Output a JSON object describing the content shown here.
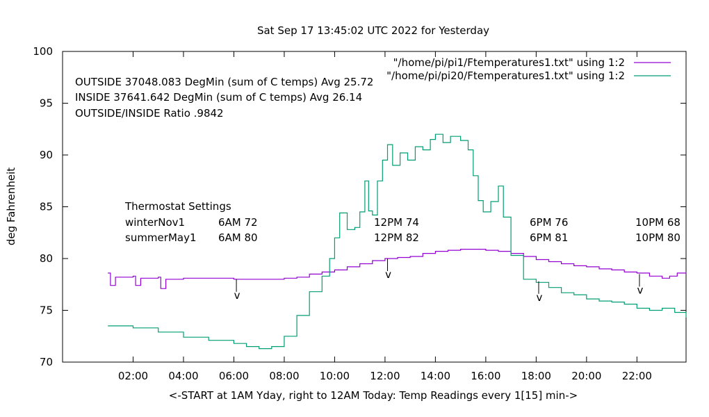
{
  "chart_data": {
    "type": "line",
    "title": "Sat Sep 17 13:45:02 UTC 2022 for Yesterday",
    "xlabel": "<-START at 1AM Yday, right to 12AM Today:  Temp Readings every 1[15] min->",
    "ylabel": "deg Fahrenheit",
    "xlim": [
      -0.8,
      23.95
    ],
    "ylim": [
      70,
      100
    ],
    "x_ticks": [
      2,
      4,
      6,
      8,
      10,
      12,
      14,
      16,
      18,
      20,
      22
    ],
    "x_tick_labels": [
      "02:00",
      "04:00",
      "06:00",
      "08:00",
      "10:00",
      "12:00",
      "14:00",
      "16:00",
      "18:00",
      "20:00",
      "22:00"
    ],
    "y_ticks": [
      70,
      75,
      80,
      85,
      90,
      95,
      100
    ],
    "y_tick_labels": [
      "70",
      "75",
      "80",
      "85",
      "90",
      "95",
      "100"
    ],
    "grid": false,
    "legend_position": "top-right",
    "series": [
      {
        "name": "\"/home/pi/pi1/Ftemperatures1.txt\" using 1:2",
        "color": "#9400d3",
        "points": [
          [
            1.0,
            78.6
          ],
          [
            1.1,
            77.4
          ],
          [
            1.3,
            78.2
          ],
          [
            2.0,
            78.3
          ],
          [
            2.1,
            77.4
          ],
          [
            2.3,
            78.1
          ],
          [
            3.0,
            78.2
          ],
          [
            3.1,
            77.1
          ],
          [
            3.3,
            78.0
          ],
          [
            4.0,
            78.1
          ],
          [
            5.0,
            78.1
          ],
          [
            6.0,
            78.0
          ],
          [
            7.0,
            78.0
          ],
          [
            8.0,
            78.1
          ],
          [
            8.5,
            78.2
          ],
          [
            9.0,
            78.5
          ],
          [
            9.5,
            78.7
          ],
          [
            10.0,
            78.9
          ],
          [
            10.5,
            79.2
          ],
          [
            11.0,
            79.5
          ],
          [
            11.5,
            79.8
          ],
          [
            12.0,
            80.0
          ],
          [
            12.5,
            80.1
          ],
          [
            13.0,
            80.2
          ],
          [
            13.5,
            80.5
          ],
          [
            14.0,
            80.7
          ],
          [
            14.5,
            80.8
          ],
          [
            15.0,
            80.9
          ],
          [
            15.5,
            80.9
          ],
          [
            16.0,
            80.8
          ],
          [
            16.5,
            80.7
          ],
          [
            17.0,
            80.5
          ],
          [
            17.5,
            80.2
          ],
          [
            18.0,
            79.9
          ],
          [
            18.5,
            79.7
          ],
          [
            19.0,
            79.5
          ],
          [
            19.5,
            79.3
          ],
          [
            20.0,
            79.2
          ],
          [
            20.5,
            79.0
          ],
          [
            21.0,
            78.9
          ],
          [
            21.5,
            78.7
          ],
          [
            22.0,
            78.6
          ],
          [
            22.5,
            78.3
          ],
          [
            23.0,
            78.1
          ],
          [
            23.3,
            78.3
          ],
          [
            23.6,
            78.6
          ],
          [
            23.95,
            78.7
          ]
        ]
      },
      {
        "name": "\"/home/pi/pi20/Ftemperatures1.txt\" using 1:2",
        "color": "#009e73",
        "points": [
          [
            1.0,
            73.5
          ],
          [
            2.0,
            73.3
          ],
          [
            3.0,
            72.9
          ],
          [
            4.0,
            72.4
          ],
          [
            5.0,
            72.1
          ],
          [
            6.0,
            71.8
          ],
          [
            6.5,
            71.5
          ],
          [
            7.0,
            71.3
          ],
          [
            7.5,
            71.5
          ],
          [
            8.0,
            72.5
          ],
          [
            8.5,
            74.5
          ],
          [
            9.0,
            76.8
          ],
          [
            9.5,
            78.3
          ],
          [
            9.8,
            80.0
          ],
          [
            10.0,
            82.0
          ],
          [
            10.2,
            84.4
          ],
          [
            10.5,
            82.8
          ],
          [
            10.8,
            83.0
          ],
          [
            11.0,
            84.5
          ],
          [
            11.2,
            87.5
          ],
          [
            11.35,
            84.6
          ],
          [
            11.5,
            84.2
          ],
          [
            11.7,
            87.5
          ],
          [
            11.9,
            89.5
          ],
          [
            12.1,
            91.0
          ],
          [
            12.3,
            89.0
          ],
          [
            12.6,
            90.2
          ],
          [
            12.9,
            89.5
          ],
          [
            13.2,
            90.8
          ],
          [
            13.5,
            90.5
          ],
          [
            13.8,
            91.5
          ],
          [
            14.0,
            92.0
          ],
          [
            14.3,
            91.2
          ],
          [
            14.6,
            91.8
          ],
          [
            15.0,
            91.4
          ],
          [
            15.3,
            90.5
          ],
          [
            15.5,
            88.0
          ],
          [
            15.7,
            85.6
          ],
          [
            15.9,
            84.5
          ],
          [
            16.2,
            85.5
          ],
          [
            16.5,
            87.0
          ],
          [
            16.7,
            84.0
          ],
          [
            17.0,
            80.3
          ],
          [
            17.5,
            78.0
          ],
          [
            18.0,
            77.7
          ],
          [
            18.5,
            77.2
          ],
          [
            19.0,
            76.7
          ],
          [
            19.5,
            76.5
          ],
          [
            20.0,
            76.1
          ],
          [
            20.5,
            75.9
          ],
          [
            21.0,
            75.8
          ],
          [
            21.5,
            75.6
          ],
          [
            22.0,
            75.2
          ],
          [
            22.5,
            75.0
          ],
          [
            23.0,
            75.2
          ],
          [
            23.5,
            74.8
          ],
          [
            23.95,
            74.3
          ]
        ]
      }
    ],
    "annotations": {
      "summary": [
        "OUTSIDE 37048.083 DegMin (sum of C temps) Avg 25.72",
        "INSIDE 37641.642 DegMin (sum of C temps) Avg 26.14",
        "OUTSIDE/INSIDE Ratio .9842"
      ],
      "thermostat_heading": "Thermostat Settings",
      "rows": [
        {
          "label": "winterNov1",
          "settings": [
            "6AM 72",
            "12PM 74",
            "6PM 76",
            "10PM 68"
          ]
        },
        {
          "label": "summerMay1",
          "settings": [
            "6AM 80",
            "12PM 82",
            "6PM 81",
            "10PM 80"
          ]
        }
      ],
      "marker_text": "v",
      "marker_x": [
        6.1,
        12.1,
        18.1,
        22.1
      ],
      "marker_y": [
        78.0,
        80.0,
        77.8,
        78.5
      ]
    }
  }
}
